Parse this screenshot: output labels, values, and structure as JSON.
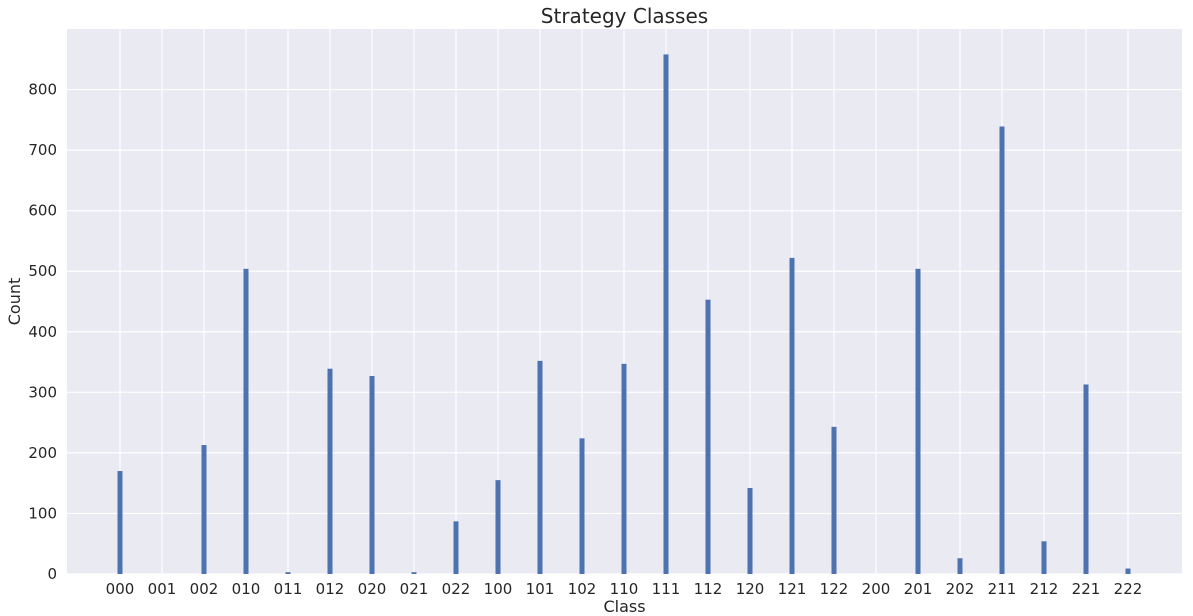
{
  "chart_data": {
    "type": "bar",
    "title": "Strategy Classes",
    "xlabel": "Class",
    "ylabel": "Count",
    "categories": [
      "000",
      "001",
      "002",
      "010",
      "011",
      "012",
      "020",
      "021",
      "022",
      "100",
      "101",
      "102",
      "110",
      "111",
      "112",
      "120",
      "121",
      "122",
      "200",
      "201",
      "202",
      "211",
      "212",
      "221",
      "222"
    ],
    "values": [
      170,
      0,
      213,
      504,
      3,
      339,
      327,
      3,
      87,
      155,
      352,
      224,
      347,
      858,
      453,
      142,
      522,
      243,
      0,
      504,
      26,
      739,
      54,
      313,
      9
    ],
    "yticks": [
      0,
      100,
      200,
      300,
      400,
      500,
      600,
      700,
      800
    ],
    "ylim": [
      0,
      900
    ],
    "grid": true,
    "background_color": "#EAEAF2",
    "bar_color": "#4C72B0",
    "grid_color": "#FFFFFF"
  }
}
